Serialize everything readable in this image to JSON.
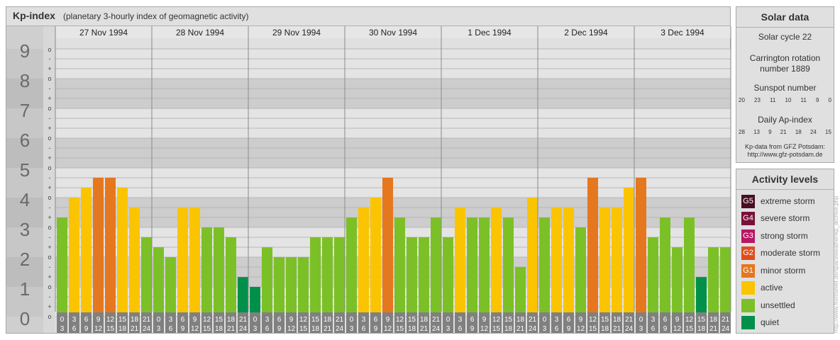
{
  "header": {
    "title": "Kp-index",
    "subtitle": "(planetary 3-hourly index of geomagnetic activity)"
  },
  "chart_data": {
    "type": "bar",
    "title": "Kp-index",
    "subtitle": "(planetary 3-hourly index of geomagnetic activity)",
    "y_tick_labels": [
      "0",
      "1",
      "2",
      "3",
      "4",
      "5",
      "6",
      "7",
      "8",
      "9"
    ],
    "y_minor_labels": [
      "o",
      "+",
      "-"
    ],
    "ylim": [
      0,
      9
    ],
    "days": [
      "27 Nov 1994",
      "28 Nov 1994",
      "29 Nov 1994",
      "30 Nov 1994",
      "1 Dec 1994",
      "2 Dec 1994",
      "3 Dec 1994"
    ],
    "interval_start_labels": [
      "0",
      "3",
      "6",
      "9",
      "12",
      "15",
      "18",
      "21"
    ],
    "interval_end_labels": [
      "3",
      "6",
      "9",
      "12",
      "15",
      "18",
      "21",
      "24"
    ],
    "values": [
      [
        3.33,
        4.0,
        4.33,
        4.67,
        4.67,
        4.33,
        3.67,
        2.67
      ],
      [
        2.33,
        2.0,
        3.67,
        3.67,
        3.0,
        3.0,
        2.67,
        1.33
      ],
      [
        1.0,
        2.33,
        2.0,
        2.0,
        2.0,
        2.67,
        2.67,
        2.67
      ],
      [
        3.33,
        3.67,
        4.0,
        4.67,
        3.33,
        2.67,
        2.67,
        3.33
      ],
      [
        2.67,
        3.67,
        3.33,
        3.33,
        3.67,
        3.33,
        1.67,
        4.0
      ],
      [
        3.33,
        3.67,
        3.67,
        3.0,
        4.67,
        3.67,
        3.67,
        4.33
      ],
      [
        4.67,
        2.67,
        3.33,
        2.33,
        3.33,
        1.33,
        2.33,
        2.33
      ]
    ],
    "levels": [
      {
        "code": "quiet",
        "min": 0,
        "color": "#00904a"
      },
      {
        "code": "unsettled",
        "min": 1.5,
        "color": "#7cc027"
      },
      {
        "code": "active",
        "min": 3.5,
        "color": "#fbc400"
      },
      {
        "code": "G1",
        "min": 4.5,
        "color": "#e5771e"
      }
    ],
    "grid": true
  },
  "solar": {
    "title": "Solar data",
    "cycle": "Solar cycle 22",
    "rotation_line1": "Carrington rotation",
    "rotation_line2": "number 1889",
    "sunspot_title": "Sunspot number",
    "sunspot_values": [
      "20",
      "23",
      "11",
      "10",
      "11",
      "9",
      "0"
    ],
    "ap_title": "Daily Ap-index",
    "ap_values": [
      "28",
      "13",
      "9",
      "21",
      "18",
      "24",
      "15"
    ],
    "source_line1": "Kp-data from GFZ Potsdam:",
    "source_line2": "http://www.gfz-potsdam.de"
  },
  "activity": {
    "title": "Activity levels",
    "items": [
      {
        "code": "G5",
        "label": "extreme storm",
        "color": "#4a0e24"
      },
      {
        "code": "G4",
        "label": "severe storm",
        "color": "#7a1038"
      },
      {
        "code": "G3",
        "label": "strong storm",
        "color": "#b81763"
      },
      {
        "code": "G2",
        "label": "moderate storm",
        "color": "#e04c1c"
      },
      {
        "code": "G1",
        "label": "minor storm",
        "color": "#e5771e"
      },
      {
        "code": "",
        "label": "active",
        "color": "#fbc400"
      },
      {
        "code": "",
        "label": "unsettled",
        "color": "#7cc027"
      },
      {
        "code": "",
        "label": "quiet",
        "color": "#00904a"
      }
    ]
  },
  "credit": "http://www.frontseiler.de/spaceweather/kp_archive.php"
}
